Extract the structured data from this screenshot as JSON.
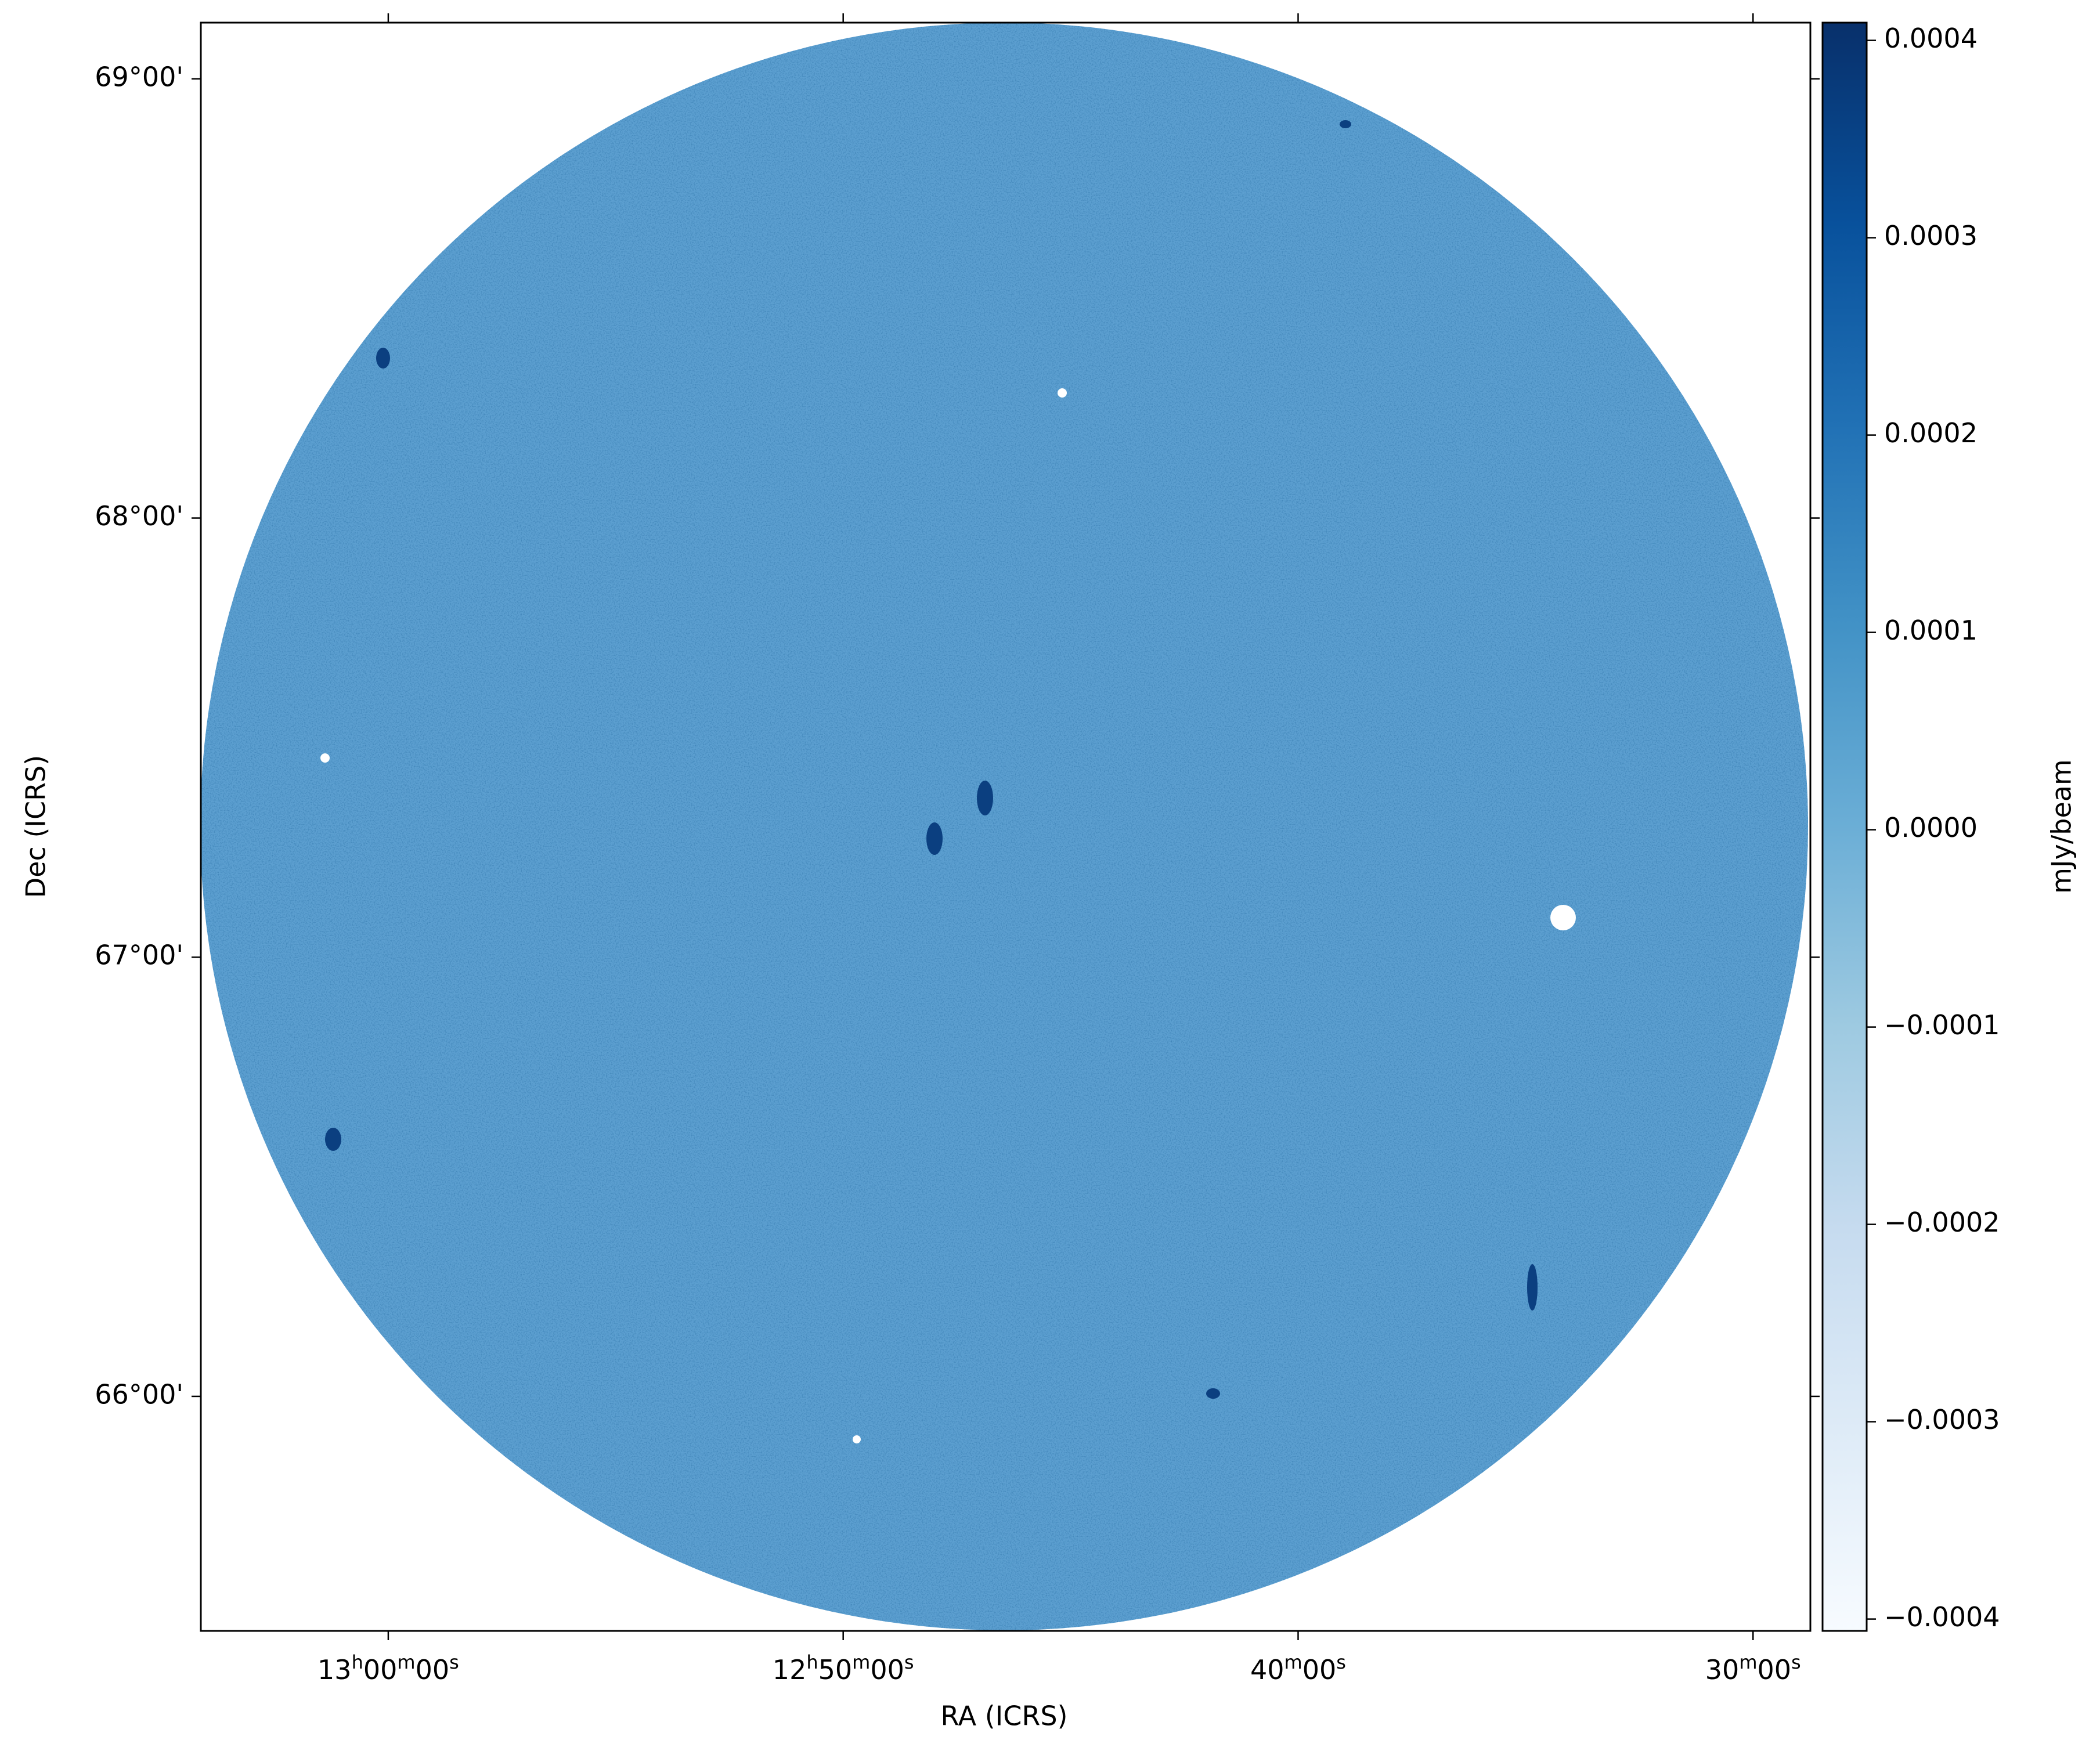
{
  "chart_data": {
    "type": "image",
    "xlabel": "RA (ICRS)",
    "ylabel": "Dec (ICRS)",
    "xlim": [
      64.12,
      28.74
    ],
    "xticks": [
      {
        "value": 60,
        "label": "13h00m00s"
      },
      {
        "value": 50,
        "label": "12h50m00s"
      },
      {
        "value": 40,
        "label": "40m00s"
      },
      {
        "value": 30,
        "label": "30m00s"
      }
    ],
    "ylim": [
      65.466,
      69.128
    ],
    "yticks": [
      {
        "value": 66,
        "label": "66°00'"
      },
      {
        "value": 67,
        "label": "67°00'"
      },
      {
        "value": 68,
        "label": "68°00'"
      },
      {
        "value": 69,
        "label": "69°00'"
      }
    ],
    "colorbar": {
      "label": "mJy/beam",
      "colormap": "Blues",
      "lim": [
        -0.000406,
        0.000409
      ],
      "ticks": [
        {
          "value": -0.0004,
          "label": "−0.0004"
        },
        {
          "value": -0.0003,
          "label": "−0.0003"
        },
        {
          "value": -0.0002,
          "label": "−0.0002"
        },
        {
          "value": -0.0001,
          "label": "−0.0001"
        },
        {
          "value": 0,
          "label": "0.0000"
        },
        0.0001,
        0.0002,
        0.0003,
        0.0004
      ]
    }
  }
}
